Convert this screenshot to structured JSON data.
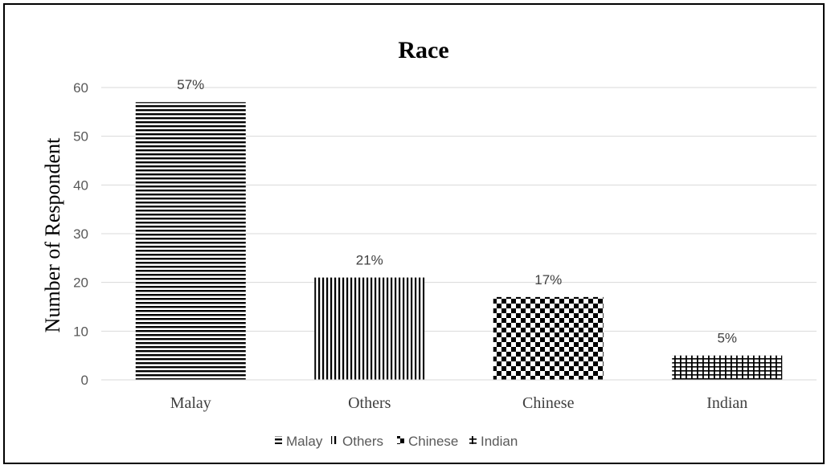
{
  "chart_data": {
    "type": "bar",
    "title": "Race",
    "xlabel": "",
    "ylabel": "Number of Respondent",
    "categories": [
      "Malay",
      "Others",
      "Chinese",
      "Indian"
    ],
    "values": [
      57,
      21,
      17,
      5
    ],
    "data_labels": [
      "57%",
      "21%",
      "17%",
      "5%"
    ],
    "patterns": [
      "horizontal-lines",
      "vertical-lines",
      "checkerboard",
      "grid"
    ],
    "ylim": [
      0,
      60
    ],
    "yticks": [
      0,
      10,
      20,
      30,
      40,
      50,
      60
    ],
    "grid": true,
    "legend": {
      "position": "bottom",
      "entries": [
        "Malay",
        "Others",
        "Chinese",
        "Indian"
      ]
    },
    "colors": {
      "bar": "#000000",
      "gridline": "#d9d9d9",
      "axis_text": "#595959"
    }
  }
}
